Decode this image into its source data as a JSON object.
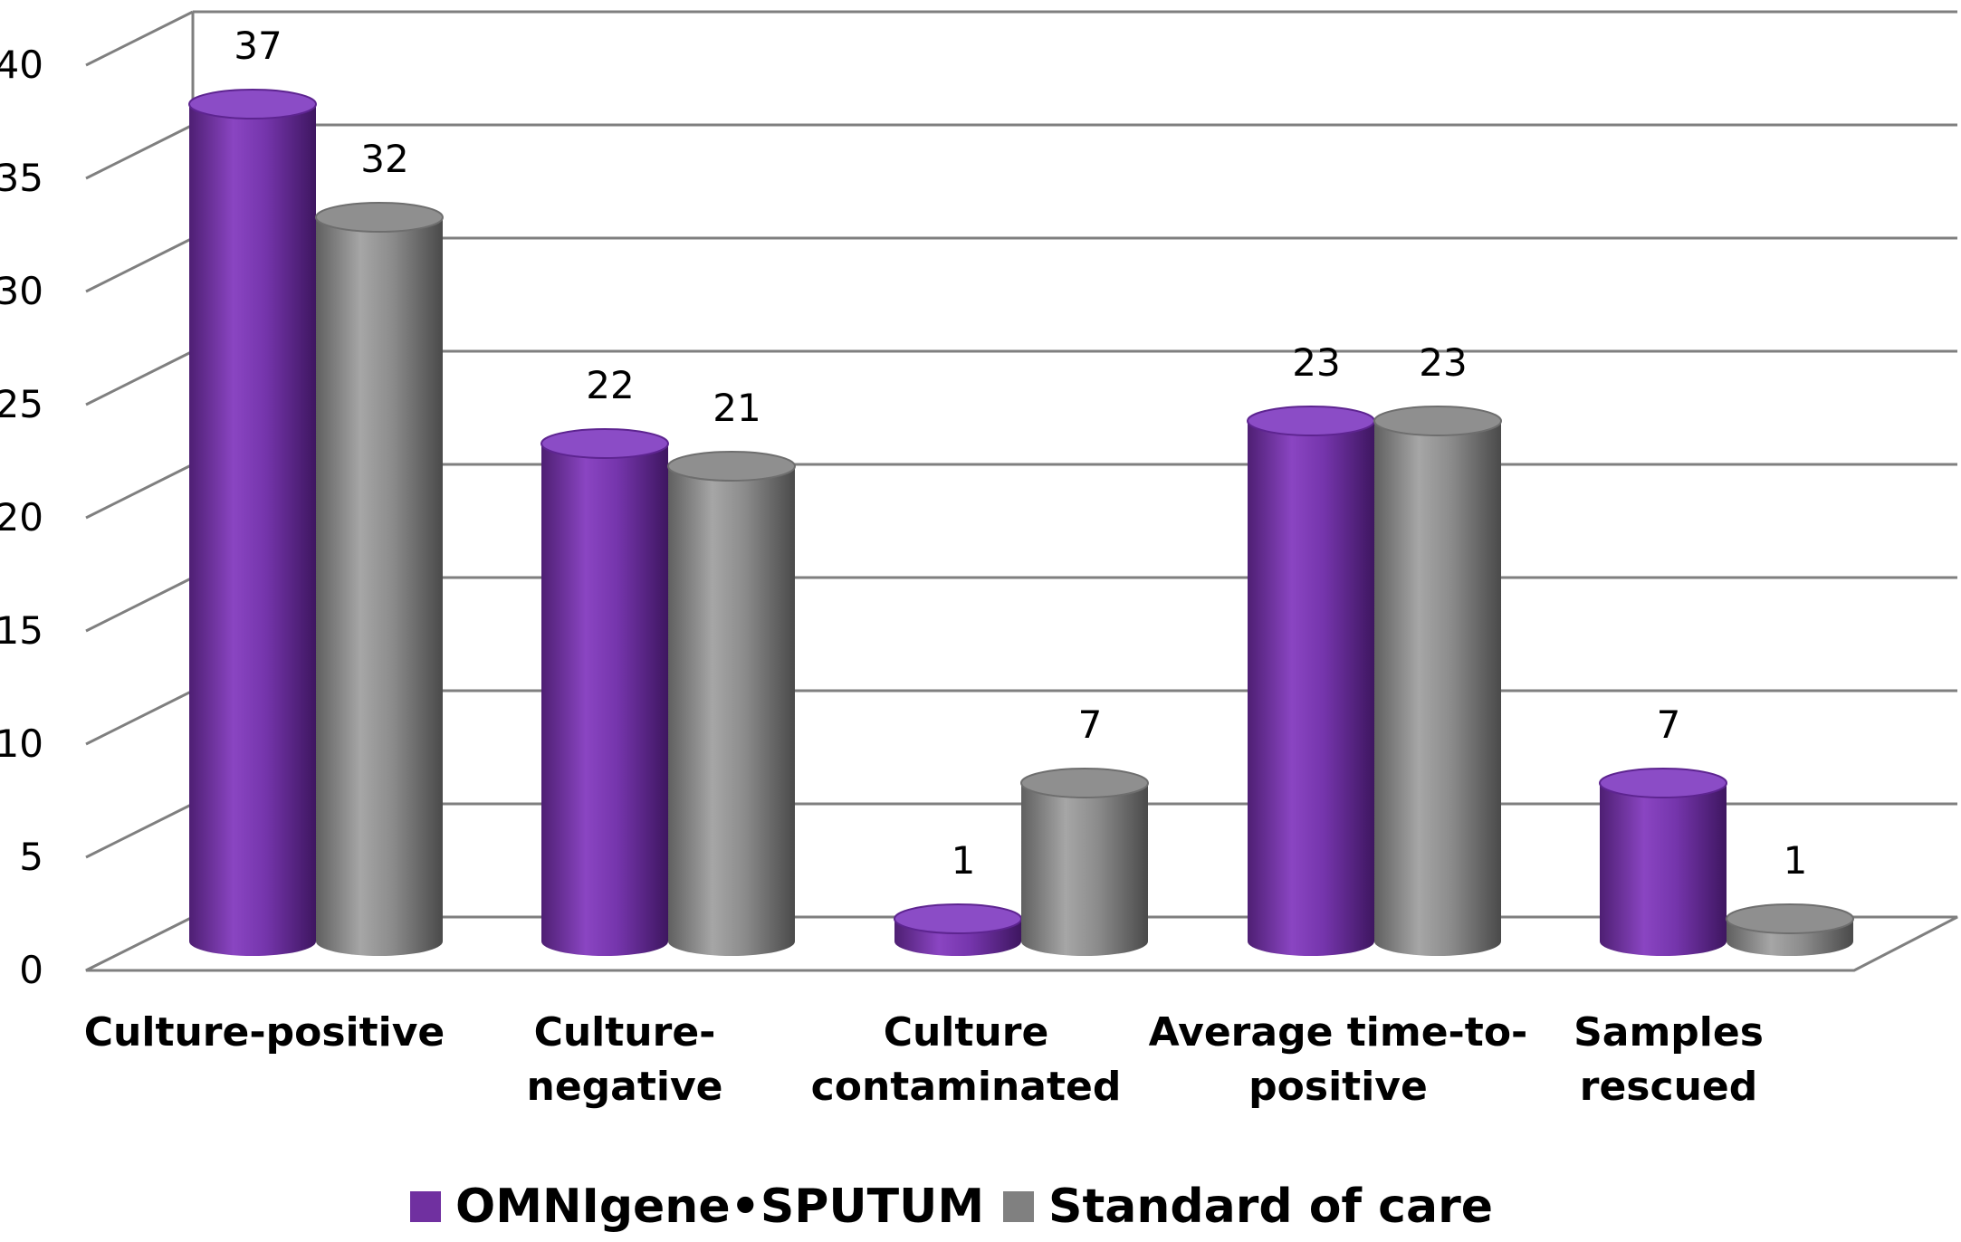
{
  "chart_data": {
    "type": "bar",
    "style": "3d-cylinder",
    "categories": [
      [
        "Culture-positive"
      ],
      [
        "Culture-",
        "negative"
      ],
      [
        "Culture",
        "contaminated"
      ],
      [
        "Average time-to-",
        "positive"
      ],
      [
        "Samples",
        "rescued"
      ]
    ],
    "series": [
      {
        "name": "OMNIgene•SPUTUM",
        "color": "#7030a0",
        "values": [
          37,
          22,
          1,
          23,
          7
        ]
      },
      {
        "name": "Standard of care",
        "color": "#808080",
        "values": [
          32,
          21,
          7,
          23,
          1
        ]
      }
    ],
    "ylim": [
      0,
      40
    ],
    "yticks": [
      0,
      5,
      10,
      15,
      20,
      25,
      30,
      35,
      40
    ],
    "grid": true,
    "legend_position": "bottom"
  }
}
